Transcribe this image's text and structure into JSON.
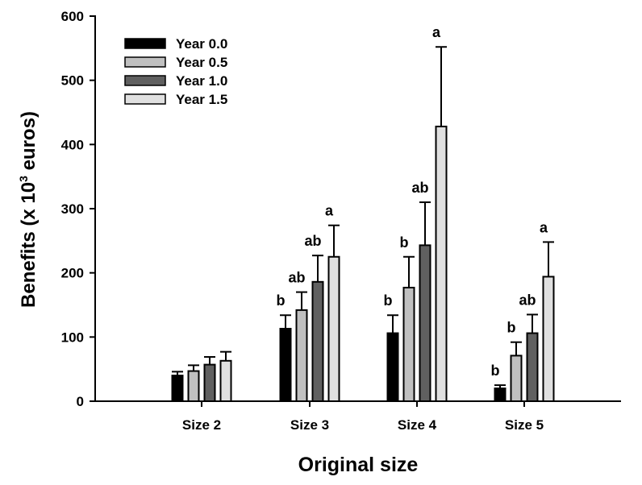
{
  "chart_data": {
    "type": "bar",
    "title": "",
    "xlabel": "Original size",
    "ylabel": "Benefits (x 10",
    "ylabel_sup": "3",
    "ylabel_end": " euros)",
    "ylim": [
      0,
      600
    ],
    "yticks": [
      0,
      100,
      200,
      300,
      400,
      500,
      600
    ],
    "categories": [
      "Size 2",
      "Size 3",
      "Size 4",
      "Size 5"
    ],
    "legend_position": "top-left",
    "grid": false,
    "series": [
      {
        "name": "Year 0.0",
        "color": "#000000",
        "values": [
          40,
          113,
          106,
          20
        ],
        "errors": [
          6,
          21,
          28,
          5
        ],
        "letters": [
          "",
          "b",
          "b",
          "b"
        ]
      },
      {
        "name": "Year 0.5",
        "color": "#c0c0c0",
        "values": [
          47,
          142,
          177,
          71
        ],
        "errors": [
          9,
          28,
          48,
          21
        ],
        "letters": [
          "",
          "ab",
          "b",
          "b"
        ]
      },
      {
        "name": "Year 1.0",
        "color": "#606060",
        "values": [
          57,
          186,
          243,
          106
        ],
        "errors": [
          12,
          41,
          67,
          29
        ],
        "letters": [
          "",
          "ab",
          "ab",
          "ab"
        ]
      },
      {
        "name": "Year 1.5",
        "color": "#e0e0e0",
        "values": [
          63,
          225,
          428,
          194
        ],
        "errors": [
          14,
          49,
          124,
          54
        ],
        "letters": [
          "",
          "a",
          "a",
          "a"
        ]
      }
    ]
  }
}
